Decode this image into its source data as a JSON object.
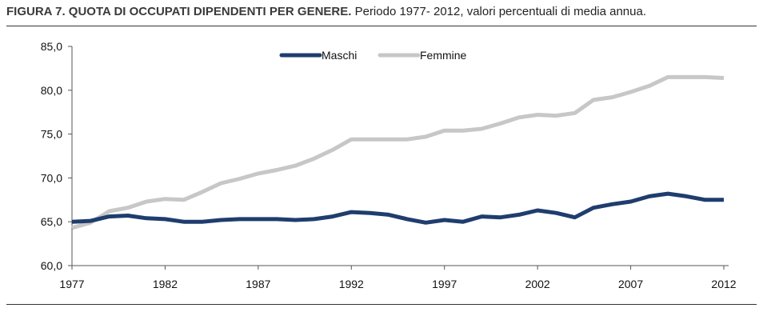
{
  "figure": {
    "title_bold": "FIGURA 7. QUOTA DI OCCUPATI DIPENDENTI PER GENERE.",
    "title_rest": "Periodo 1977- 2012, valori percentuali di media annua."
  },
  "chart_data": {
    "type": "line",
    "title": "FIGURA 7. QUOTA DI OCCUPATI DIPENDENTI PER GENERE.",
    "subtitle": "Periodo 1977- 2012, valori percentuali di media annua.",
    "xlabel": "",
    "ylabel": "",
    "ylim": [
      60,
      85
    ],
    "yticks": [
      "60,0",
      "65,0",
      "70,0",
      "75,0",
      "80,0",
      "85,0"
    ],
    "xticks": [
      "1977",
      "1982",
      "1987",
      "1992",
      "1997",
      "2002",
      "2007",
      "2012"
    ],
    "grid": false,
    "legend_position": "top-center",
    "x": [
      1977,
      1978,
      1979,
      1980,
      1981,
      1982,
      1983,
      1984,
      1985,
      1986,
      1987,
      1988,
      1989,
      1990,
      1991,
      1992,
      1993,
      1994,
      1995,
      1996,
      1997,
      1998,
      1999,
      2000,
      2001,
      2002,
      2003,
      2004,
      2005,
      2006,
      2007,
      2008,
      2009,
      2010,
      2011,
      2012
    ],
    "series": [
      {
        "name": "Maschi",
        "color": "#1f3d6e",
        "values": [
          65.0,
          65.1,
          65.6,
          65.7,
          65.4,
          65.3,
          65.0,
          65.0,
          65.2,
          65.3,
          65.3,
          65.3,
          65.2,
          65.3,
          65.6,
          66.1,
          66.0,
          65.8,
          65.3,
          64.9,
          65.2,
          65.0,
          65.6,
          65.5,
          65.8,
          66.3,
          66.0,
          65.5,
          66.6,
          67.0,
          67.3,
          67.9,
          68.2,
          67.9,
          67.5,
          67.5
        ]
      },
      {
        "name": "Femmine",
        "color": "#c7c7c7",
        "values": [
          64.3,
          64.9,
          66.2,
          66.6,
          67.3,
          67.6,
          67.5,
          68.4,
          69.4,
          69.9,
          70.5,
          70.9,
          71.4,
          72.2,
          73.2,
          74.4,
          74.4,
          74.4,
          74.4,
          74.7,
          75.4,
          75.4,
          75.6,
          76.2,
          76.9,
          77.2,
          77.1,
          77.4,
          78.9,
          79.2,
          79.8,
          80.5,
          81.5,
          81.5,
          81.5,
          81.4
        ]
      }
    ]
  }
}
